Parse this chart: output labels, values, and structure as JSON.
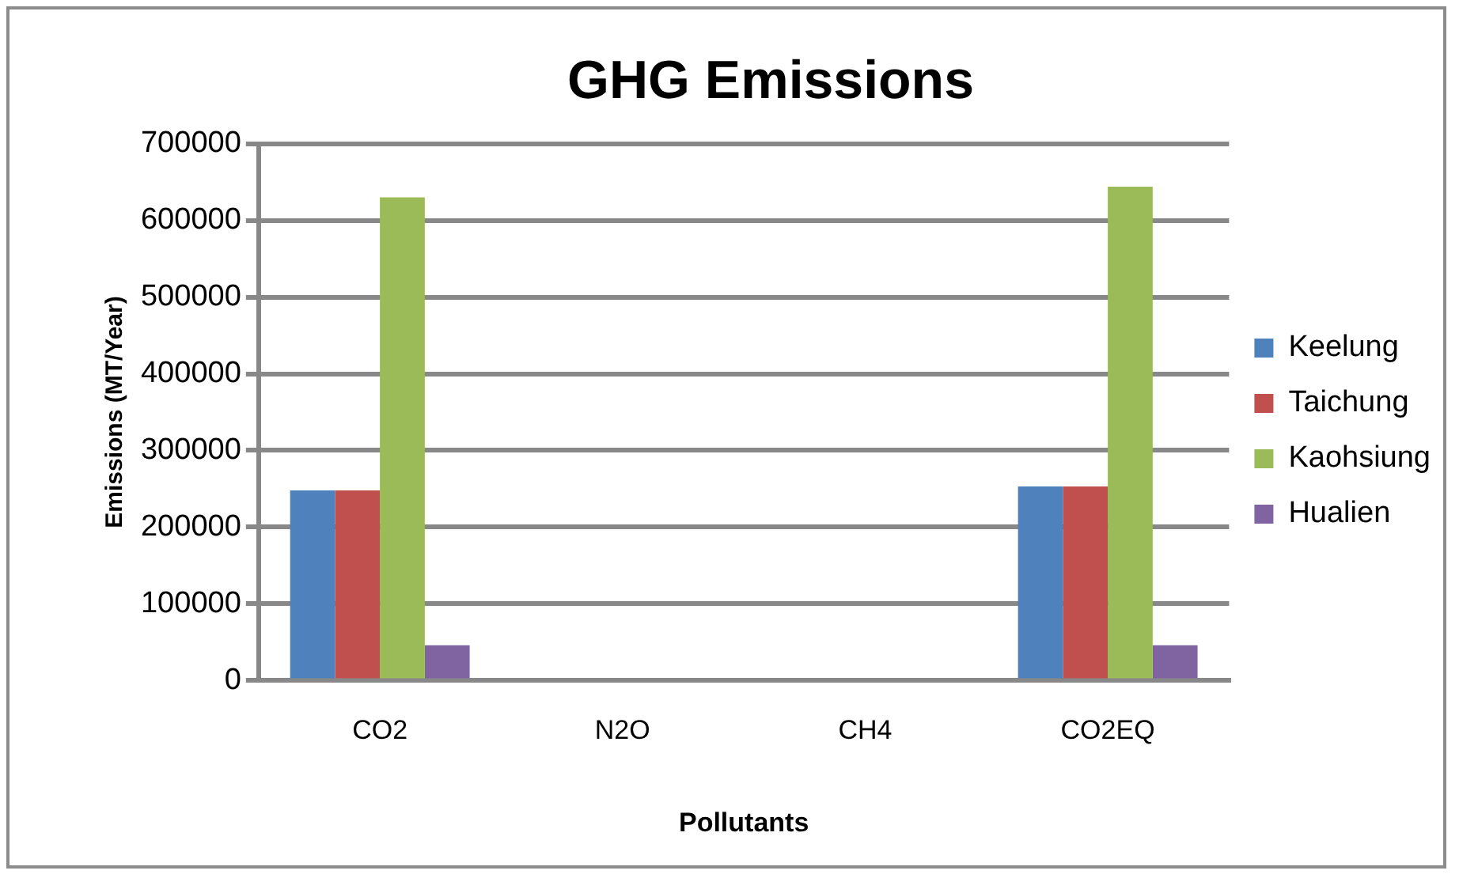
{
  "chart_data": {
    "type": "bar",
    "title": "GHG Emissions",
    "xlabel": "Pollutants",
    "ylabel": "Emissions (MT/Year)",
    "categories": [
      "CO2",
      "N2O",
      "CH4",
      "CO2EQ"
    ],
    "series": [
      {
        "name": "Keelung",
        "color": "#4f81bd",
        "values": [
          248000,
          0,
          0,
          253000
        ]
      },
      {
        "name": "Taichung",
        "color": "#c0504d",
        "values": [
          248000,
          0,
          0,
          253000
        ]
      },
      {
        "name": "Kaohsiung",
        "color": "#9bbb59",
        "values": [
          630000,
          0,
          0,
          644000
        ]
      },
      {
        "name": "Hualien",
        "color": "#8064a2",
        "values": [
          46000,
          0,
          0,
          46000
        ]
      }
    ],
    "ylim": [
      0,
      700000
    ],
    "yticks": [
      0,
      100000,
      200000,
      300000,
      400000,
      500000,
      600000,
      700000
    ],
    "grid": "y",
    "legend": "right"
  }
}
